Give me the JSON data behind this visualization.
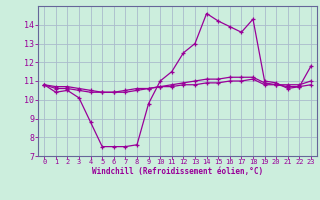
{
  "xlabel": "Windchill (Refroidissement éolien,°C)",
  "background_color": "#cceedd",
  "grid_color": "#aabbcc",
  "line_color": "#990099",
  "spine_color": "#666699",
  "xlim": [
    -0.5,
    23.5
  ],
  "ylim": [
    7,
    15
  ],
  "yticks": [
    7,
    8,
    9,
    10,
    11,
    12,
    13,
    14
  ],
  "xticks": [
    0,
    1,
    2,
    3,
    4,
    5,
    6,
    7,
    8,
    9,
    10,
    11,
    12,
    13,
    14,
    15,
    16,
    17,
    18,
    19,
    20,
    21,
    22,
    23
  ],
  "curve1_x": [
    0,
    1,
    2,
    3,
    4,
    5,
    6,
    7,
    8,
    9,
    10,
    11,
    12,
    13,
    14,
    15,
    16,
    17,
    18,
    19,
    20,
    21,
    22,
    23
  ],
  "curve1_y": [
    10.8,
    10.4,
    10.5,
    10.1,
    8.8,
    7.5,
    7.5,
    7.5,
    7.6,
    9.8,
    11.0,
    11.5,
    12.5,
    13.0,
    14.6,
    14.2,
    13.9,
    13.6,
    14.3,
    11.0,
    10.9,
    10.6,
    10.7,
    11.8
  ],
  "curve2_x": [
    0,
    1,
    2,
    3,
    4,
    5,
    6,
    7,
    8,
    9,
    10,
    11,
    12,
    13,
    14,
    15,
    16,
    17,
    18,
    19,
    20,
    21,
    22,
    23
  ],
  "curve2_y": [
    10.8,
    10.6,
    10.6,
    10.5,
    10.4,
    10.4,
    10.4,
    10.5,
    10.6,
    10.6,
    10.7,
    10.7,
    10.8,
    10.8,
    10.9,
    10.9,
    11.0,
    11.0,
    11.1,
    10.8,
    10.8,
    10.8,
    10.8,
    11.0
  ],
  "curve3_x": [
    0,
    1,
    2,
    3,
    4,
    5,
    6,
    7,
    8,
    9,
    10,
    11,
    12,
    13,
    14,
    15,
    16,
    17,
    18,
    19,
    20,
    21,
    22,
    23
  ],
  "curve3_y": [
    10.8,
    10.7,
    10.7,
    10.6,
    10.5,
    10.4,
    10.4,
    10.4,
    10.5,
    10.6,
    10.7,
    10.8,
    10.9,
    11.0,
    11.1,
    11.1,
    11.2,
    11.2,
    11.2,
    10.9,
    10.8,
    10.7,
    10.7,
    10.8
  ]
}
